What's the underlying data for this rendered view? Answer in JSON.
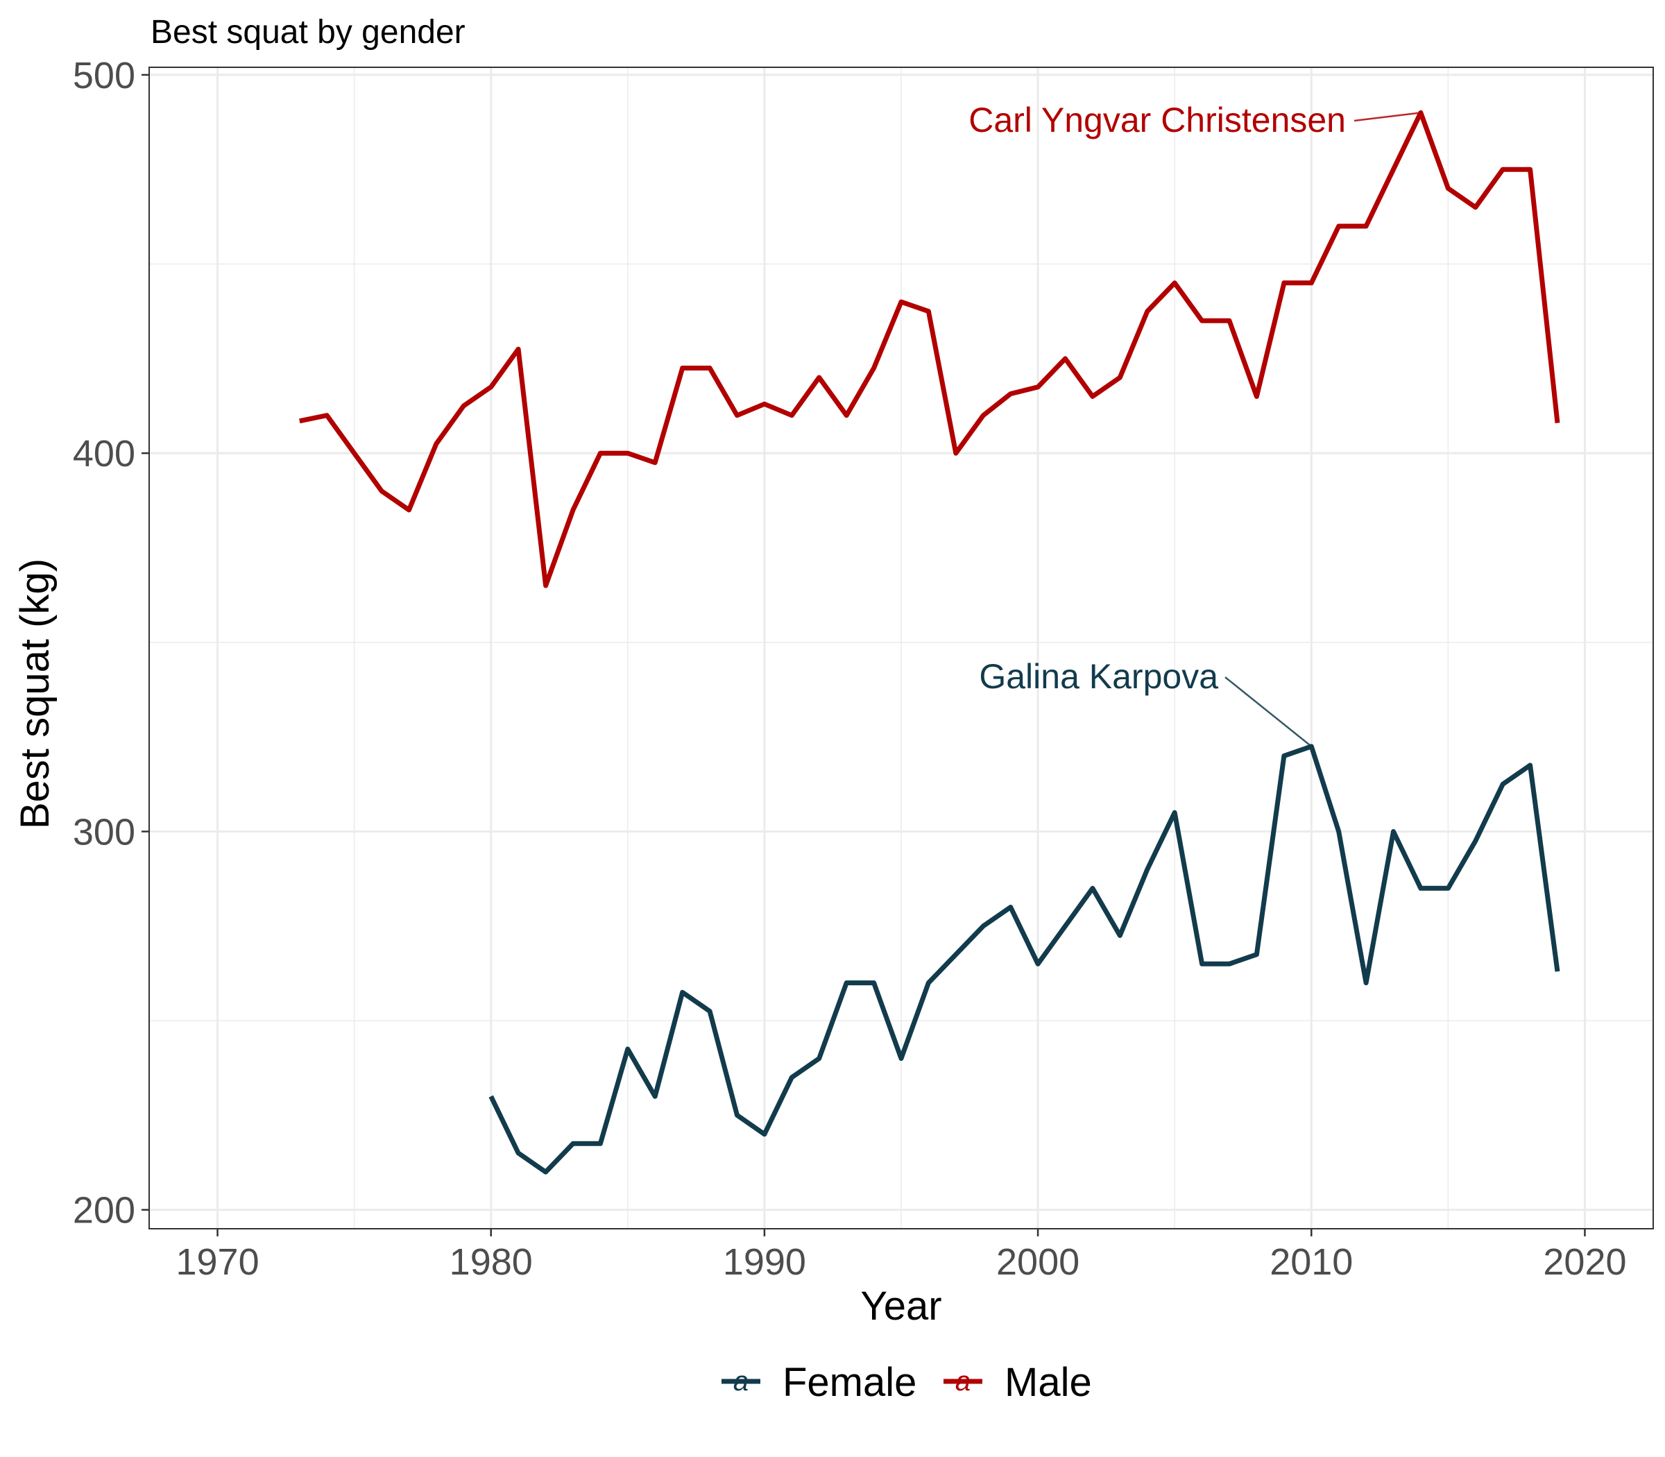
{
  "chart_data": {
    "type": "line",
    "title": "Best squat by gender",
    "xlabel": "Year",
    "ylabel": "Best squat (kg)",
    "xlim": [
      1967.5,
      2022.5
    ],
    "ylim": [
      195,
      502
    ],
    "x_ticks": [
      1970,
      1980,
      1990,
      2000,
      2010,
      2020
    ],
    "x_tick_labels": [
      "1970",
      "1980",
      "1990",
      "2000",
      "2010",
      "2020"
    ],
    "y_ticks": [
      200,
      300,
      400,
      500
    ],
    "y_tick_labels": [
      "200",
      "300",
      "400",
      "500"
    ],
    "grid": true,
    "legend_position": "bottom",
    "series": [
      {
        "name": "Female",
        "color": "#123b4c",
        "x": [
          1980,
          1981,
          1982,
          1983,
          1984,
          1985,
          1986,
          1987,
          1988,
          1989,
          1990,
          1991,
          1992,
          1993,
          1994,
          1995,
          1996,
          1997,
          1998,
          1999,
          2000,
          2001,
          2002,
          2003,
          2004,
          2005,
          2006,
          2007,
          2008,
          2009,
          2010,
          2011,
          2012,
          2013,
          2014,
          2015,
          2016,
          2017,
          2018,
          2019
        ],
        "values": [
          230,
          215,
          210,
          217.5,
          217.5,
          242.5,
          230,
          257.5,
          252.5,
          225,
          220,
          235,
          240,
          260,
          260,
          240,
          260,
          267.5,
          275,
          280,
          265,
          275,
          285,
          272.5,
          290,
          305,
          265,
          265,
          267.5,
          320,
          322.5,
          300,
          260,
          300,
          285,
          285,
          297.5,
          312.5,
          317.5,
          263
        ]
      },
      {
        "name": "Male",
        "color": "#b20000",
        "x": [
          1973,
          1974,
          1975,
          1976,
          1977,
          1978,
          1979,
          1980,
          1981,
          1982,
          1983,
          1984,
          1985,
          1986,
          1987,
          1988,
          1989,
          1990,
          1991,
          1992,
          1993,
          1994,
          1995,
          1996,
          1997,
          1998,
          1999,
          2000,
          2001,
          2002,
          2003,
          2004,
          2005,
          2006,
          2007,
          2008,
          2009,
          2010,
          2011,
          2012,
          2013,
          2014,
          2015,
          2016,
          2017,
          2018,
          2019
        ],
        "values": [
          408.5,
          410,
          400,
          390,
          385,
          402.5,
          412.5,
          417.5,
          427.5,
          365,
          385,
          400,
          400,
          397.5,
          422.5,
          422.5,
          410,
          413,
          410,
          420,
          410,
          422.5,
          440,
          437.5,
          400,
          410,
          415.7,
          417.5,
          425,
          415,
          420,
          437.5,
          445,
          435,
          435,
          415,
          445,
          445,
          460,
          460,
          475,
          490,
          470,
          465,
          475,
          475,
          408
        ]
      }
    ],
    "annotations": [
      {
        "text": "Carl Yngvar Christensen",
        "series": "Male",
        "x": 2014,
        "y": 490
      },
      {
        "text": "Galina Karpova",
        "series": "Female",
        "x": 2010,
        "y": 322.5
      }
    ]
  }
}
